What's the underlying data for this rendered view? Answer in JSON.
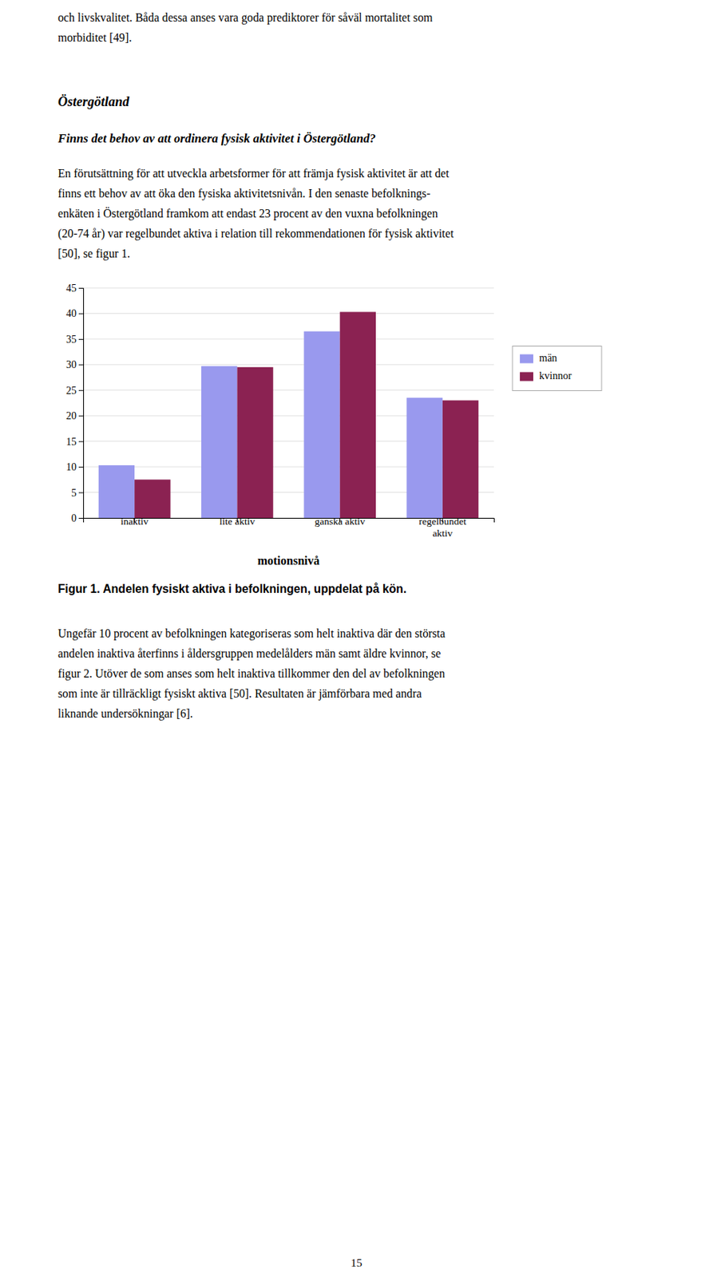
{
  "text_block1": [
    "och livskvalitet. Båda dessa anses vara goda prediktorer för såväl mortalitet som",
    "morbiditet [49]."
  ],
  "heading1": "Östergötland",
  "heading2": "Finns det behov av att ordinera fysisk aktivitet i Östergötland?",
  "para1": [
    "En förutsättning för att utveckla arbetsformer för att främja fysisk aktivitet är att det",
    "finns ett behov av att öka den fysiska aktivitetsnivån. I den senaste befolknings-",
    "enkäten i Östergötland framkom att endast 23 procent av den vuxna befolkningen",
    "(20-74 år) var regelbundet aktiva i relation till rekommendationen för fysisk aktivitet",
    "[50], se figur 1."
  ],
  "chart_data": {
    "type": "bar",
    "title": "Figur 1. Andelen fysiskt aktiva i befolkningen, uppdelat på kön.",
    "xlabel": "motionsnivå",
    "categories": [
      "inaktiv",
      "lite aktiv",
      "ganska aktiv",
      "regelbundet\naktiv"
    ],
    "series": [
      {
        "name": "män",
        "color": "#9999EE",
        "values": [
          10.3,
          29.7,
          36.5,
          23.5
        ]
      },
      {
        "name": "kvinnor",
        "color": "#8B2252",
        "values": [
          7.5,
          29.5,
          40.3,
          23.0
        ]
      }
    ],
    "ylim": [
      0,
      45
    ],
    "yticks": [
      0,
      5,
      10,
      15,
      20,
      25,
      30,
      35,
      40,
      45
    ],
    "grid": true,
    "legend": "right"
  },
  "para2": [
    "Ungefär 10 procent av befolkningen kategoriseras som helt inaktiva där den största",
    "andelen inaktiva återfinns i åldersgruppen medelålders män samt äldre kvinnor, se",
    "figur 2. Utöver de som anses som helt inaktiva tillkommer den del av befolkningen",
    "som inte är tillräckligt fysiskt aktiva [50]. Resultaten är jämförbara med andra",
    "liknande undersökningar [6]."
  ],
  "page_number": "15"
}
